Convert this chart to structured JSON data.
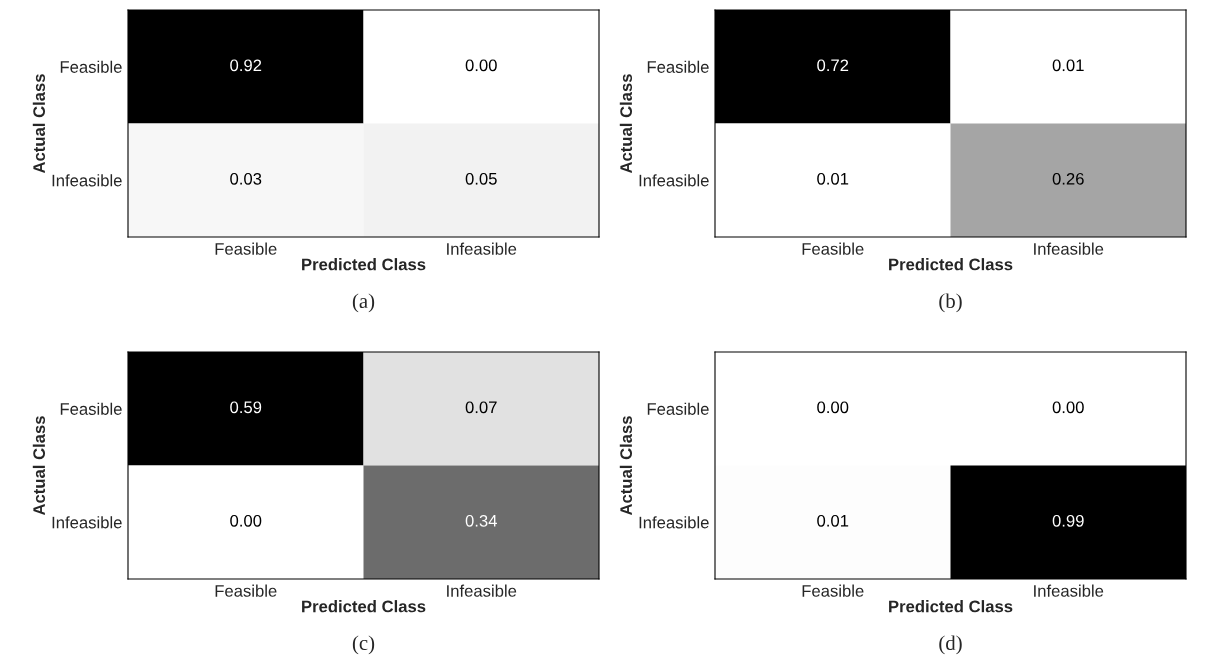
{
  "chart_data": [
    {
      "type": "heatmap",
      "title": "(a)",
      "xlabel": "Predicted Class",
      "ylabel": "Actual Class",
      "categories": [
        "Feasible",
        "Infeasible"
      ],
      "y_categories": [
        "Feasible",
        "Infeasible"
      ],
      "cells": [
        [
          0.92,
          0.0
        ],
        [
          0.03,
          0.05
        ]
      ],
      "cell_labels": [
        [
          "0.92",
          "0.00"
        ],
        [
          "0.03",
          "0.05"
        ]
      ]
    },
    {
      "type": "heatmap",
      "title": "(b)",
      "xlabel": "Predicted Class",
      "ylabel": "Actual Class",
      "categories": [
        "Feasible",
        "Infeasible"
      ],
      "y_categories": [
        "Feasible",
        "Infeasible"
      ],
      "cells": [
        [
          0.72,
          0.01
        ],
        [
          0.01,
          0.26
        ]
      ],
      "cell_labels": [
        [
          "0.72",
          "0.01"
        ],
        [
          "0.01",
          "0.26"
        ]
      ]
    },
    {
      "type": "heatmap",
      "title": "(c)",
      "xlabel": "Predicted Class",
      "ylabel": "Actual Class",
      "categories": [
        "Feasible",
        "Infeasible"
      ],
      "y_categories": [
        "Feasible",
        "Infeasible"
      ],
      "cells": [
        [
          0.59,
          0.07
        ],
        [
          0.0,
          0.34
        ]
      ],
      "cell_labels": [
        [
          "0.59",
          "0.07"
        ],
        [
          "0.00",
          "0.34"
        ]
      ]
    },
    {
      "type": "heatmap",
      "title": "(d)",
      "xlabel": "Predicted Class",
      "ylabel": "Actual Class",
      "categories": [
        "Feasible",
        "Infeasible"
      ],
      "y_categories": [
        "Feasible",
        "Infeasible"
      ],
      "cells": [
        [
          0.0,
          0.0
        ],
        [
          0.01,
          0.99
        ]
      ],
      "cell_labels": [
        [
          "0.00",
          "0.00"
        ],
        [
          "0.01",
          "0.99"
        ]
      ]
    }
  ]
}
